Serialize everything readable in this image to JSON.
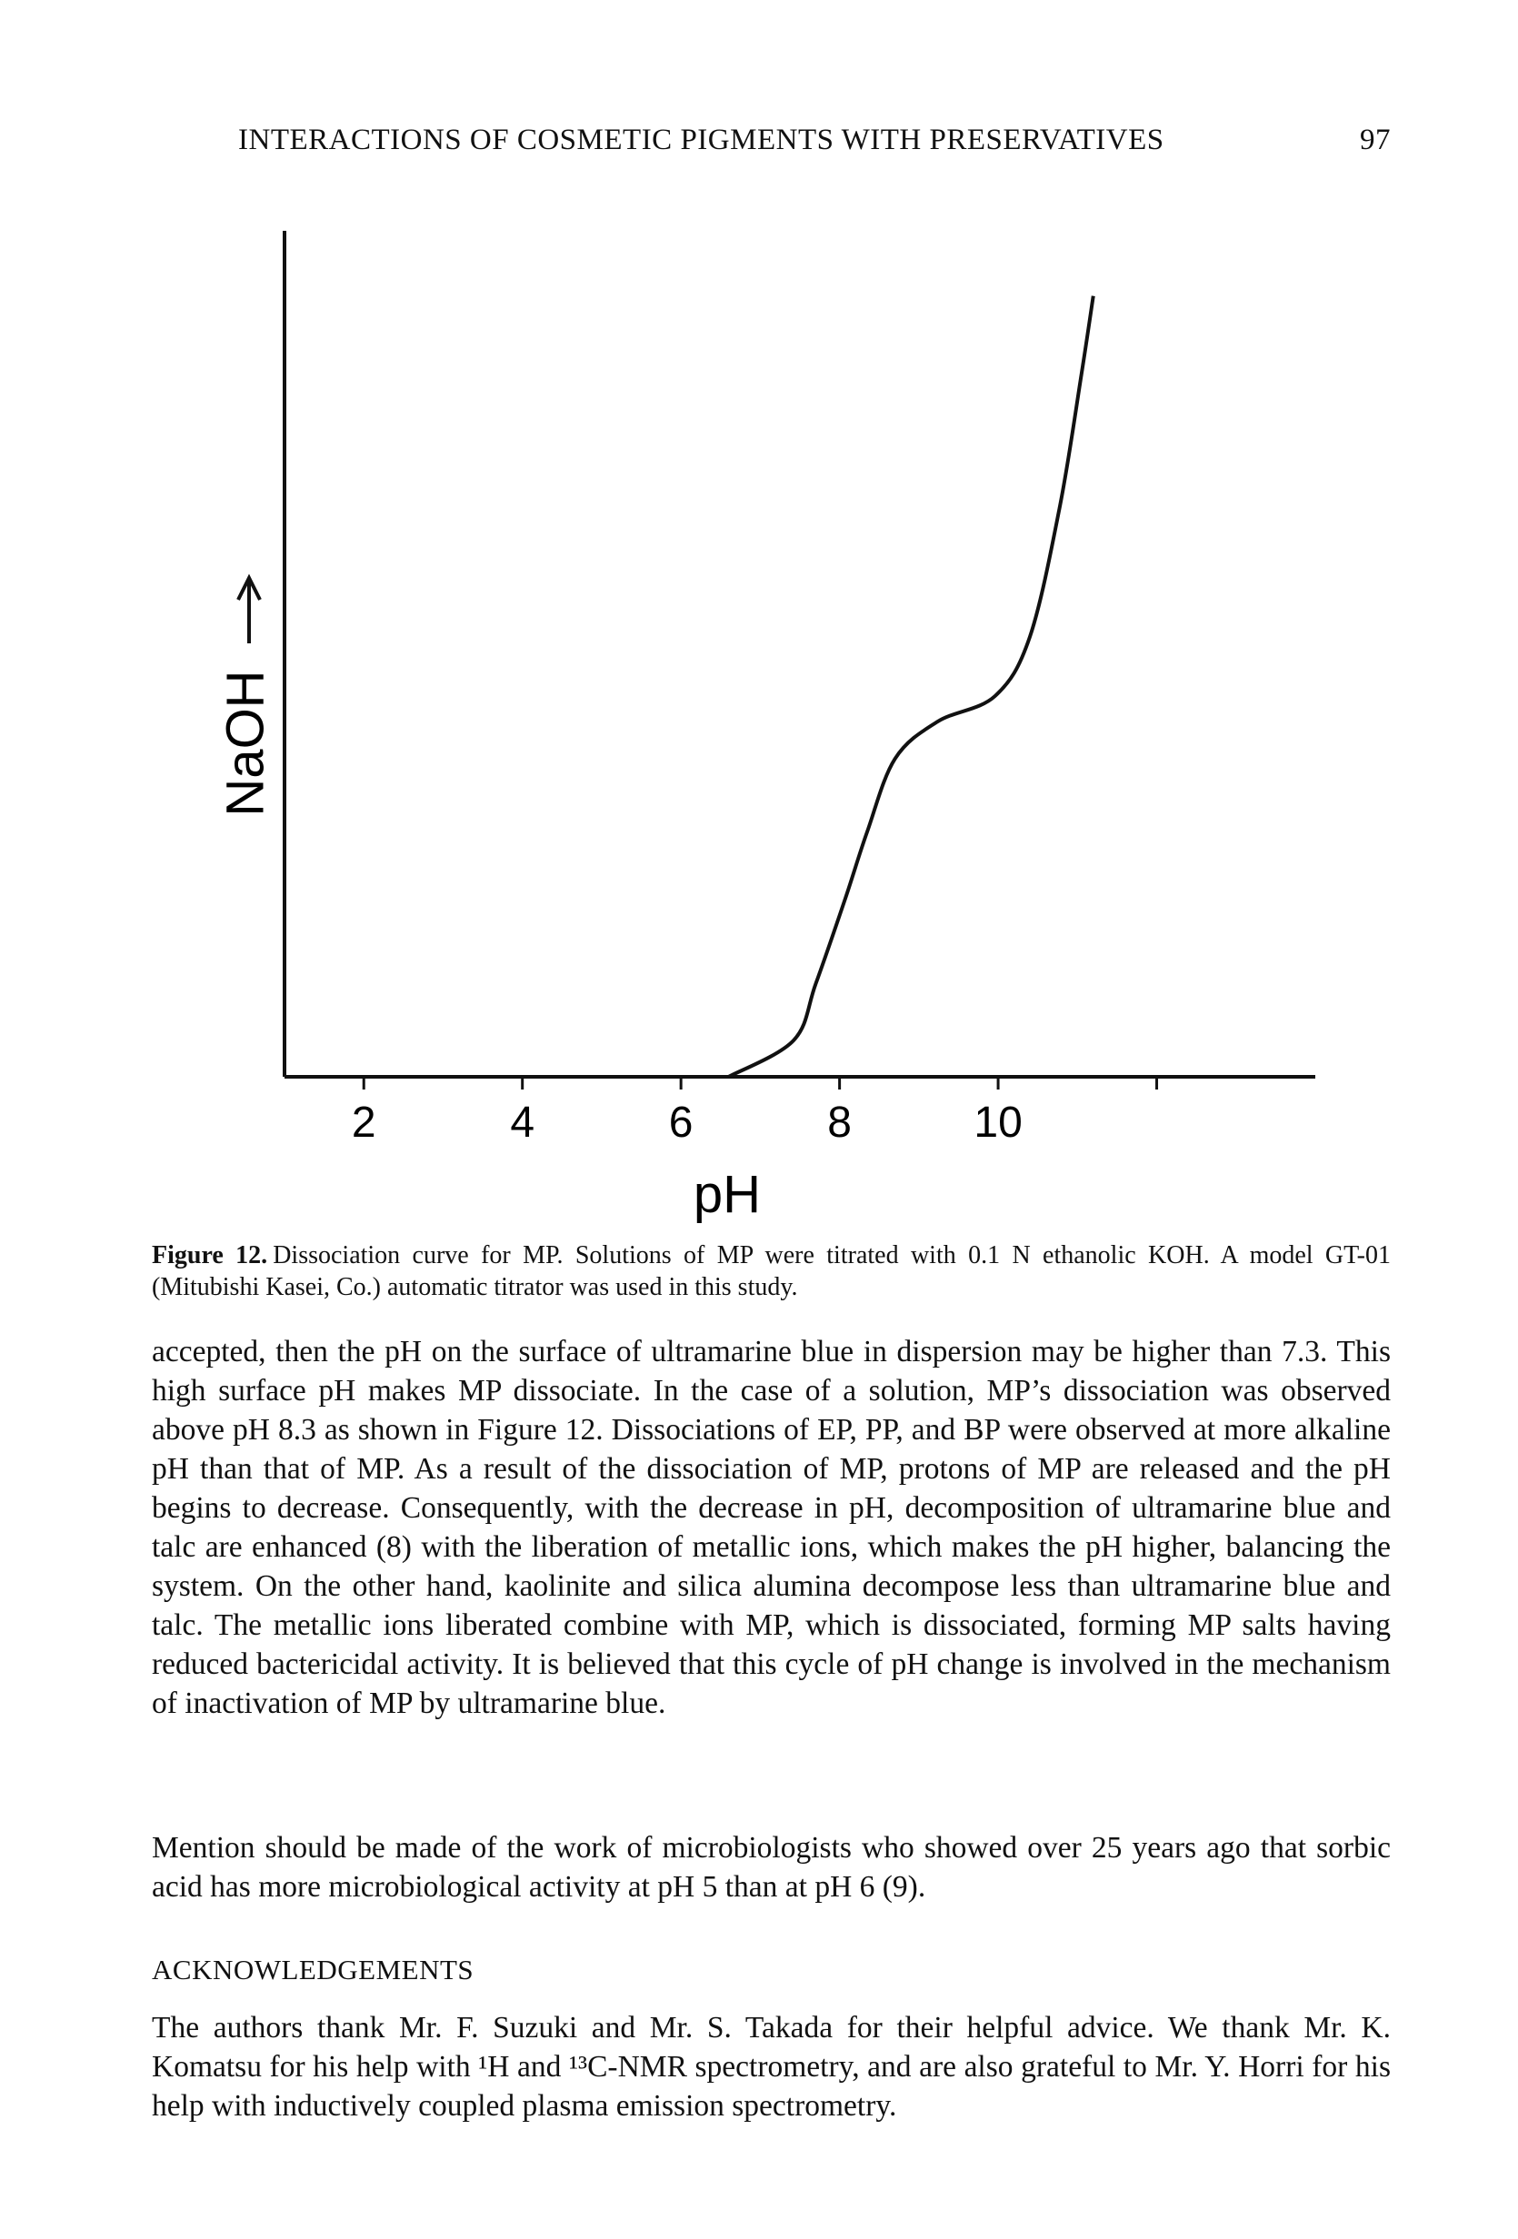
{
  "header": {
    "title": "INTERACTIONS OF COSMETIC PIGMENTS WITH PRESERVATIVES",
    "page": "97"
  },
  "chart_data": {
    "type": "line",
    "xlabel": "pH",
    "ylabel": "NaOH",
    "x": [
      6.6,
      7.42,
      7.7,
      8.07,
      8.35,
      8.7,
      9.24,
      9.96,
      10.4,
      10.78,
      11.05,
      11.2
    ],
    "values": [
      0,
      4.3,
      11,
      21,
      29,
      37.6,
      42,
      45,
      52,
      67.5,
      83,
      92.3
    ],
    "color": "#111111",
    "xlim": [
      1,
      14
    ],
    "xticks": [
      2,
      4,
      6,
      8,
      10,
      {
        "value": 12,
        "label": null
      }
    ],
    "ylim": [
      0,
      100
    ]
  },
  "caption": {
    "label": "Figure 12.",
    "text": "Dissociation curve for MP. Solutions of MP were titrated with 0.1 N ethanolic KOH. A model GT-01 (Mitubishi Kasei, Co.) automatic titrator was used in this study."
  },
  "body": [
    "accepted, then the pH on the surface of ultramarine blue in dispersion may be higher than 7.3. This high surface pH makes MP dissociate. In the case of a solution, MP’s dissociation was observed above pH 8.3 as shown in Figure 12. Dissociations of EP, PP, and BP were observed at more alkaline pH than that of MP. As a result of the dissociation of MP, protons of MP are released and the pH begins to decrease. Consequently, with the decrease in pH, decomposition of ultramarine blue and talc are enhanced (8) with the liberation of metallic ions, which makes the pH higher, balancing the system. On the other hand, kaolinite and silica alumina decompose less than ultramarine blue and talc. The metallic ions liberated combine with MP, which is dissociated, forming MP salts having reduced bactericidal activity. It is believed that this cycle of pH change is involved in the mechanism of inactivation of MP by ultramarine blue.",
    "Mention should be made of the work of microbiologists who showed over 25 years ago that sorbic acid has more microbiological activity at pH 5 than at pH 6 (9)."
  ],
  "acknowledgements": {
    "heading": "ACKNOWLEDGEMENTS",
    "text": "The authors thank Mr. F. Suzuki and Mr. S. Takada for their helpful advice. We thank Mr. K. Komatsu for his help with ¹H and ¹³C-NMR spectrometry, and are also grateful to Mr. Y. Horri for his help with inductively coupled plasma emission spectrometry."
  }
}
